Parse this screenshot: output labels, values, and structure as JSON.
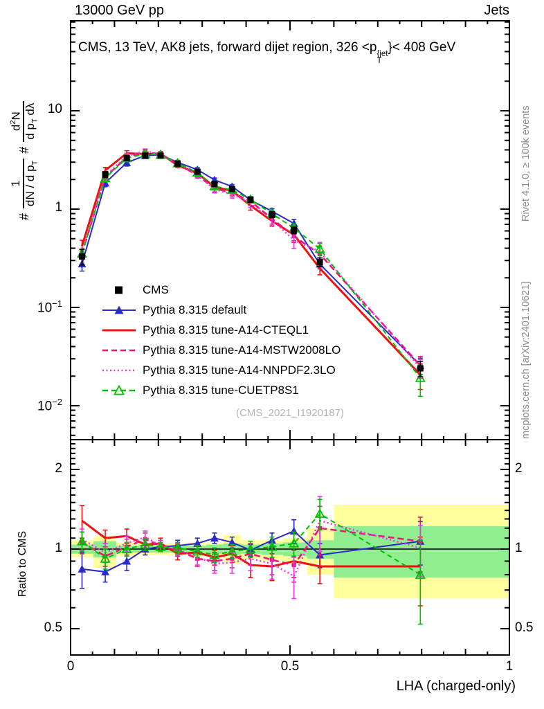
{
  "header": {
    "left": "13000 GeV pp",
    "right": "Jets"
  },
  "title": {
    "part1": "CMS, 13 TeV, AK8 jets, forward dijet region, 326 <p",
    "sup": "{jet",
    "sub": "T",
    "part2": "}< 408 GeV"
  },
  "ylabel": {
    "hash1": "#",
    "f1num": "1",
    "f1den_pre": "dN / d p",
    "f1den_sub": "T",
    "hash2": "#",
    "f2num_pre": "d",
    "f2num_sup": "2",
    "f2num_post": "N",
    "f2den_pre": "d p",
    "f2den_sub": "T",
    "f2den_post": " dλ"
  },
  "right_labels": {
    "top": "Rivet 4.1.0, ≥ 100k events",
    "bottom": "mcplots.cern.ch [arXiv:2401.10621]"
  },
  "watermark": "(CMS_2021_I1920187)",
  "ratio_ylabel": "Ratio to CMS",
  "xlabel": "LHA (charged-only)",
  "axis_ticks": {
    "main_y": [
      {
        "base": "10",
        "exp": "",
        "value": 10
      },
      {
        "base": "1",
        "exp": "",
        "value": 1
      },
      {
        "base": "10",
        "exp": "−1",
        "value": 0.1
      },
      {
        "base": "10",
        "exp": "−2",
        "value": 0.01
      }
    ],
    "ratio_y": [
      {
        "label": "2",
        "value": 2
      },
      {
        "label": "1",
        "value": 1
      },
      {
        "label": "0.5",
        "value": 0.5
      }
    ],
    "x": [
      {
        "label": "0",
        "value": 0
      },
      {
        "label": "0.5",
        "value": 0.5
      },
      {
        "label": "1",
        "value": 1
      }
    ]
  },
  "legend": {
    "items": [
      {
        "label": "CMS",
        "marker": "fsquare",
        "line": "none",
        "color": "#000000"
      },
      {
        "label": "Pythia 8.315 default",
        "marker": "ftri",
        "line": "solid",
        "color": "#2929cc"
      },
      {
        "label": "Pythia 8.315 tune-A14-CTEQL1",
        "marker": "none",
        "line": "solid",
        "color": "#ee1111"
      },
      {
        "label": "Pythia 8.315 tune-A14-MSTW2008LO",
        "marker": "none",
        "line": "dashed",
        "color": "#ec1379"
      },
      {
        "label": "Pythia 8.315 tune-A14-NNPDF2.3LO",
        "marker": "none",
        "line": "dotted",
        "color": "#ee33ee"
      },
      {
        "label": "Pythia 8.315 tune-CUETP8S1",
        "marker": "otri",
        "line": "dashed",
        "color": "#00c000"
      }
    ]
  },
  "chart_data": {
    "type": "line",
    "title": "CMS, 13 TeV, AK8 jets, forward dijet region, 326 < pT(jet) < 408 GeV",
    "xlabel": "LHA (charged-only)",
    "ylabel_main": "# 1/(dN/dpT) # d2N/(dpT dlambda)",
    "ylabel_ratio": "Ratio to CMS",
    "xlim": [
      0,
      1
    ],
    "main_y_log_ticks": [
      10,
      1,
      0.1,
      0.01
    ],
    "ratio_y_log_ticks": [
      2,
      1,
      0.5
    ],
    "grid": false,
    "legend_position": "middle-left of main panel",
    "x": [
      0.026,
      0.079,
      0.128,
      0.17,
      0.205,
      0.244,
      0.289,
      0.328,
      0.368,
      0.41,
      0.459,
      0.509,
      0.568,
      0.797
    ],
    "bin_edges": [
      0.0,
      0.052,
      0.104,
      0.149,
      0.188,
      0.225,
      0.267,
      0.309,
      0.348,
      0.389,
      0.435,
      0.484,
      0.539,
      0.6,
      1.0
    ],
    "cms": {
      "name": "CMS",
      "values": [
        0.33,
        2.25,
        3.3,
        3.5,
        3.5,
        2.9,
        2.4,
        1.8,
        1.6,
        1.25,
        0.88,
        0.61,
        0.29,
        0.024
      ],
      "rel_err": [
        0.18,
        0.07,
        0.05,
        0.04,
        0.04,
        0.04,
        0.04,
        0.05,
        0.05,
        0.06,
        0.07,
        0.08,
        0.1,
        0.18
      ],
      "color": "#000000",
      "marker": "fsquare"
    },
    "series": [
      {
        "name": "Pythia 8.315 default",
        "color": "#2929cc",
        "style": "solid",
        "width": 2,
        "marker": "ftri",
        "ratio": [
          0.84,
          0.82,
          0.9,
          1.0,
          1.02,
          1.03,
          1.05,
          1.1,
          1.06,
          0.99,
          1.08,
          1.17,
          0.95,
          1.07
        ],
        "ratio_err": [
          0.13,
          0.07,
          0.07,
          0.05,
          0.04,
          0.05,
          0.05,
          0.05,
          0.05,
          0.05,
          0.07,
          0.12,
          0.1,
          0.2
        ]
      },
      {
        "name": "Pythia 8.315 tune-A14-CTEQL1",
        "color": "#ee1111",
        "style": "solid",
        "width": 3,
        "marker": "none",
        "ratio": [
          1.28,
          1.1,
          1.12,
          1.04,
          1.05,
          0.96,
          0.97,
          0.93,
          0.96,
          0.87,
          0.86,
          0.9,
          0.86,
          0.86
        ],
        "ratio_err": [
          0.18,
          0.08,
          0.07,
          0.05,
          0.05,
          0.05,
          0.06,
          0.06,
          0.07,
          0.09,
          0.1,
          0.12,
          0.12,
          0.25
        ]
      },
      {
        "name": "Pythia 8.315 tune-A14-MSTW2008LO",
        "color": "#ec1379",
        "style": "dashed",
        "width": 2.5,
        "marker": "ssquare",
        "ratio": [
          1.06,
          0.94,
          1.02,
          1.09,
          1.03,
          0.99,
          0.92,
          0.9,
          0.92,
          0.96,
          0.91,
          0.87,
          1.2,
          1.07
        ],
        "ratio_err": [
          0.1,
          0.08,
          0.07,
          0.06,
          0.05,
          0.05,
          0.06,
          0.07,
          0.07,
          0.09,
          0.11,
          0.12,
          0.25,
          0.25
        ]
      },
      {
        "name": "Pythia 8.315 tune-A14-NNPDF2.3LO",
        "color": "#ee33ee",
        "style": "dotted",
        "width": 2.5,
        "marker": "none",
        "ratio": [
          1.09,
          0.97,
          1.05,
          1.11,
          1.03,
          1.0,
          0.93,
          0.88,
          0.89,
          0.92,
          0.88,
          0.79,
          1.28,
          1.01
        ],
        "ratio_err": [
          0.1,
          0.08,
          0.07,
          0.06,
          0.05,
          0.05,
          0.06,
          0.07,
          0.08,
          0.09,
          0.11,
          0.14,
          0.3,
          0.22
        ]
      },
      {
        "name": "Pythia 8.315 tune-CUETP8S1",
        "color": "#00c000",
        "style": "dashed2",
        "width": 2,
        "marker": "otri",
        "ratio": [
          1.07,
          0.92,
          1.0,
          1.04,
          1.02,
          1.01,
          0.98,
          0.95,
          0.98,
          1.0,
          1.02,
          1.05,
          1.36,
          0.8
        ],
        "ratio_err": [
          0.09,
          0.08,
          0.06,
          0.05,
          0.04,
          0.05,
          0.05,
          0.06,
          0.06,
          0.07,
          0.09,
          0.11,
          0.18,
          0.28
        ]
      }
    ],
    "ratio_bands": {
      "yellow_color": "#ffff9e",
      "green_color": "#90ee90",
      "yellow": [
        [
          0.93,
          1.08
        ],
        [
          0.85,
          1.12
        ],
        [
          0.94,
          1.06
        ],
        [
          0.95,
          1.06
        ],
        [
          0.95,
          1.05
        ],
        [
          0.95,
          1.05
        ],
        [
          0.94,
          1.06
        ],
        [
          0.94,
          1.06
        ],
        [
          0.88,
          1.13
        ],
        [
          0.92,
          1.08
        ],
        [
          0.9,
          1.08
        ],
        [
          0.88,
          1.1
        ],
        [
          0.8,
          1.2
        ],
        [
          0.65,
          1.47
        ]
      ],
      "green": [
        [
          0.96,
          1.04
        ],
        [
          0.93,
          1.07
        ],
        [
          0.97,
          1.03
        ],
        [
          0.97,
          1.03
        ],
        [
          0.97,
          1.03
        ],
        [
          0.97,
          1.03
        ],
        [
          0.97,
          1.03
        ],
        [
          0.96,
          1.04
        ],
        [
          0.95,
          1.05
        ],
        [
          0.96,
          1.04
        ],
        [
          0.95,
          1.05
        ],
        [
          0.94,
          1.06
        ],
        [
          0.92,
          1.08
        ],
        [
          0.78,
          1.22
        ]
      ]
    }
  }
}
